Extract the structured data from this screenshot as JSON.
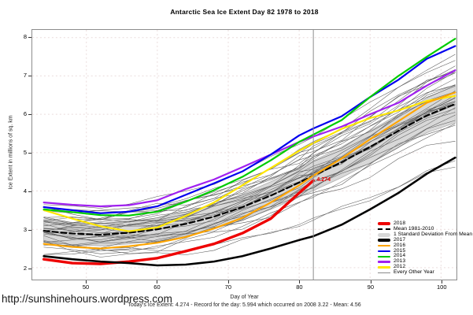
{
  "page": {
    "url_watermark": "http://sunshinehours.wordpress.com"
  },
  "chart_data": {
    "type": "line",
    "title": "Antarctic Sea Ice Extent Day 82 1978 to 2018",
    "xlabel": "Day of Year",
    "ylabel": "Ice Extent in millions of sq. km",
    "caption": "Today's Ice Extent: 4.274  - Record for the day: 5.994 which occurred on 2008 3.22  - Mean: 4.56",
    "xlim": [
      42.37,
      102.18
    ],
    "ylim": [
      1.69,
      8.2
    ],
    "xticks": [
      50,
      60,
      70,
      80,
      90,
      100
    ],
    "yticks": [
      2,
      3,
      4,
      5,
      6,
      7,
      8
    ],
    "grid": true,
    "grid_color": "#eadcdc",
    "vline_x": 82,
    "vline_color": "#8c8c8c",
    "annotation": {
      "text": "4.274",
      "x": 82,
      "y": 4.274,
      "color": "#ee0000"
    },
    "x": [
      44,
      48,
      52,
      56,
      60,
      64,
      68,
      72,
      76,
      80,
      82,
      86,
      90,
      94,
      98,
      102
    ],
    "band": {
      "label": "1 Standard Deviation From Mean",
      "color": "#d8d8d8",
      "edge_color": "#afafaf",
      "upper": [
        3.26,
        3.18,
        3.15,
        3.2,
        3.3,
        3.45,
        3.65,
        3.92,
        4.24,
        4.6,
        4.79,
        5.15,
        5.57,
        6.0,
        6.42,
        6.76
      ],
      "lower": [
        2.66,
        2.6,
        2.57,
        2.62,
        2.7,
        2.83,
        3.01,
        3.24,
        3.52,
        3.84,
        4.01,
        4.35,
        4.73,
        5.14,
        5.52,
        5.78
      ]
    },
    "mean": {
      "label": "Mean 1981-2010",
      "color": "#000000",
      "values": [
        2.96,
        2.89,
        2.86,
        2.91,
        3.0,
        3.14,
        3.33,
        3.58,
        3.88,
        4.22,
        4.4,
        4.75,
        5.15,
        5.57,
        5.97,
        6.27
      ]
    },
    "series": [
      {
        "name": "2012",
        "color": "#ffe600",
        "width": 2.2,
        "values": [
          3.5,
          3.28,
          3.08,
          2.95,
          3.05,
          3.35,
          3.7,
          4.15,
          4.6,
          5.05,
          5.25,
          5.62,
          5.9,
          6.1,
          6.35,
          6.48
        ]
      },
      {
        "name": "2013",
        "color": "#a020f0",
        "width": 2.2,
        "values": [
          3.7,
          3.64,
          3.6,
          3.63,
          3.76,
          4.05,
          4.3,
          4.62,
          4.95,
          5.28,
          5.42,
          5.68,
          6.0,
          6.3,
          6.75,
          7.15
        ]
      },
      {
        "name": "2015",
        "color": "#0000ee",
        "width": 2.2,
        "values": [
          3.58,
          3.5,
          3.42,
          3.46,
          3.6,
          3.9,
          4.2,
          4.51,
          4.95,
          5.45,
          5.63,
          5.95,
          6.45,
          6.9,
          7.45,
          7.78
        ]
      },
      {
        "name": "2014",
        "color": "#00cc00",
        "width": 2.2,
        "values": [
          3.52,
          3.45,
          3.37,
          3.36,
          3.46,
          3.72,
          4.02,
          4.37,
          4.8,
          5.28,
          5.47,
          5.85,
          6.45,
          7.0,
          7.5,
          7.97
        ]
      },
      {
        "name": "2016",
        "color": "#ffa500",
        "width": 2.2,
        "values": [
          2.62,
          2.54,
          2.5,
          2.56,
          2.65,
          2.8,
          3.02,
          3.3,
          3.7,
          4.15,
          4.4,
          4.85,
          5.35,
          5.82,
          6.3,
          6.57
        ]
      },
      {
        "name": "2018",
        "color": "#ee0000",
        "width": 3.4,
        "values": [
          2.22,
          2.12,
          2.1,
          2.16,
          2.25,
          2.43,
          2.62,
          2.9,
          3.28,
          3.95,
          4.274,
          null,
          null,
          null,
          null,
          null
        ]
      },
      {
        "name": "2017",
        "color": "#000000",
        "width": 2.6,
        "values": [
          2.3,
          2.22,
          2.16,
          2.12,
          2.06,
          2.08,
          2.16,
          2.3,
          2.5,
          2.72,
          2.82,
          3.12,
          3.52,
          3.95,
          4.45,
          4.87
        ]
      }
    ],
    "other_years": {
      "label": "Every Other Year",
      "color": "#5a5a5a",
      "width": 0.55,
      "offset_params_note": "each entry [base_offset, slope_offset, wave_amp, phase] applied to mean",
      "params": [
        [
          0.05,
          0.1,
          0.06,
          0.0
        ],
        [
          -0.15,
          0.3,
          0.08,
          1.0
        ],
        [
          0.2,
          -0.2,
          0.06,
          2.0
        ],
        [
          0.35,
          0.5,
          0.1,
          3.0
        ],
        [
          -0.3,
          0.15,
          0.07,
          4.0
        ],
        [
          0.1,
          0.8,
          0.12,
          5.0
        ],
        [
          -0.45,
          -0.1,
          0.05,
          0.5
        ],
        [
          0.5,
          0.2,
          0.14,
          1.5
        ],
        [
          -0.05,
          -0.4,
          0.08,
          2.5
        ],
        [
          0.25,
          0.1,
          0.05,
          3.5
        ],
        [
          -0.2,
          0.6,
          0.1,
          4.5
        ],
        [
          0.4,
          -0.3,
          0.07,
          5.5
        ],
        [
          0.0,
          0.25,
          0.1,
          0.8
        ],
        [
          -0.35,
          0.45,
          0.06,
          1.8
        ],
        [
          0.15,
          -0.15,
          0.09,
          2.8
        ],
        [
          0.55,
          0.35,
          0.05,
          3.8
        ],
        [
          -0.5,
          0.05,
          0.12,
          4.8
        ],
        [
          0.3,
          0.7,
          0.08,
          5.8
        ],
        [
          -0.1,
          -0.25,
          0.06,
          1.2
        ],
        [
          0.45,
          0.0,
          0.1,
          2.2
        ],
        [
          -0.25,
          0.35,
          0.07,
          3.2
        ],
        [
          0.05,
          0.55,
          0.11,
          4.2
        ],
        [
          0.6,
          -0.1,
          0.05,
          5.2
        ],
        [
          -0.4,
          0.25,
          0.09,
          0.3
        ],
        [
          0.2,
          0.4,
          0.06,
          1.3
        ],
        [
          -0.05,
          0.9,
          0.1,
          2.3
        ],
        [
          0.35,
          -0.35,
          0.08,
          3.3
        ],
        [
          -0.55,
          0.5,
          0.07,
          4.3
        ],
        [
          0.1,
          -0.05,
          0.12,
          5.3
        ],
        [
          0.65,
          0.6,
          0.05,
          0.7
        ],
        [
          -0.35,
          -1.2,
          0.08,
          1.7
        ],
        [
          -0.15,
          -1.5,
          0.06,
          2.7
        ],
        [
          0.0,
          -0.9,
          0.09,
          3.7
        ],
        [
          0.2,
          1.0,
          0.07,
          4.7
        ]
      ]
    }
  },
  "legend": {
    "items": [
      {
        "label": "2018",
        "color": "#ee0000",
        "style": "thick"
      },
      {
        "label": "Mean 1981-2010",
        "color": "#000000",
        "style": "dashed"
      },
      {
        "label": "1 Standard Deviation From Mean",
        "color": "#d8d8d8",
        "style": "band"
      },
      {
        "label": "2017",
        "color": "#000000",
        "style": "thick"
      },
      {
        "label": "2016",
        "color": "#ffa500",
        "style": "med"
      },
      {
        "label": "2015",
        "color": "#0000ee",
        "style": "med"
      },
      {
        "label": "2014",
        "color": "#00cc00",
        "style": "med"
      },
      {
        "label": "2013",
        "color": "#a020f0",
        "style": "med"
      },
      {
        "label": "2012",
        "color": "#ffe600",
        "style": "med"
      },
      {
        "label": "Every Other Year",
        "color": "#8a8a8a",
        "style": "thin"
      }
    ]
  }
}
